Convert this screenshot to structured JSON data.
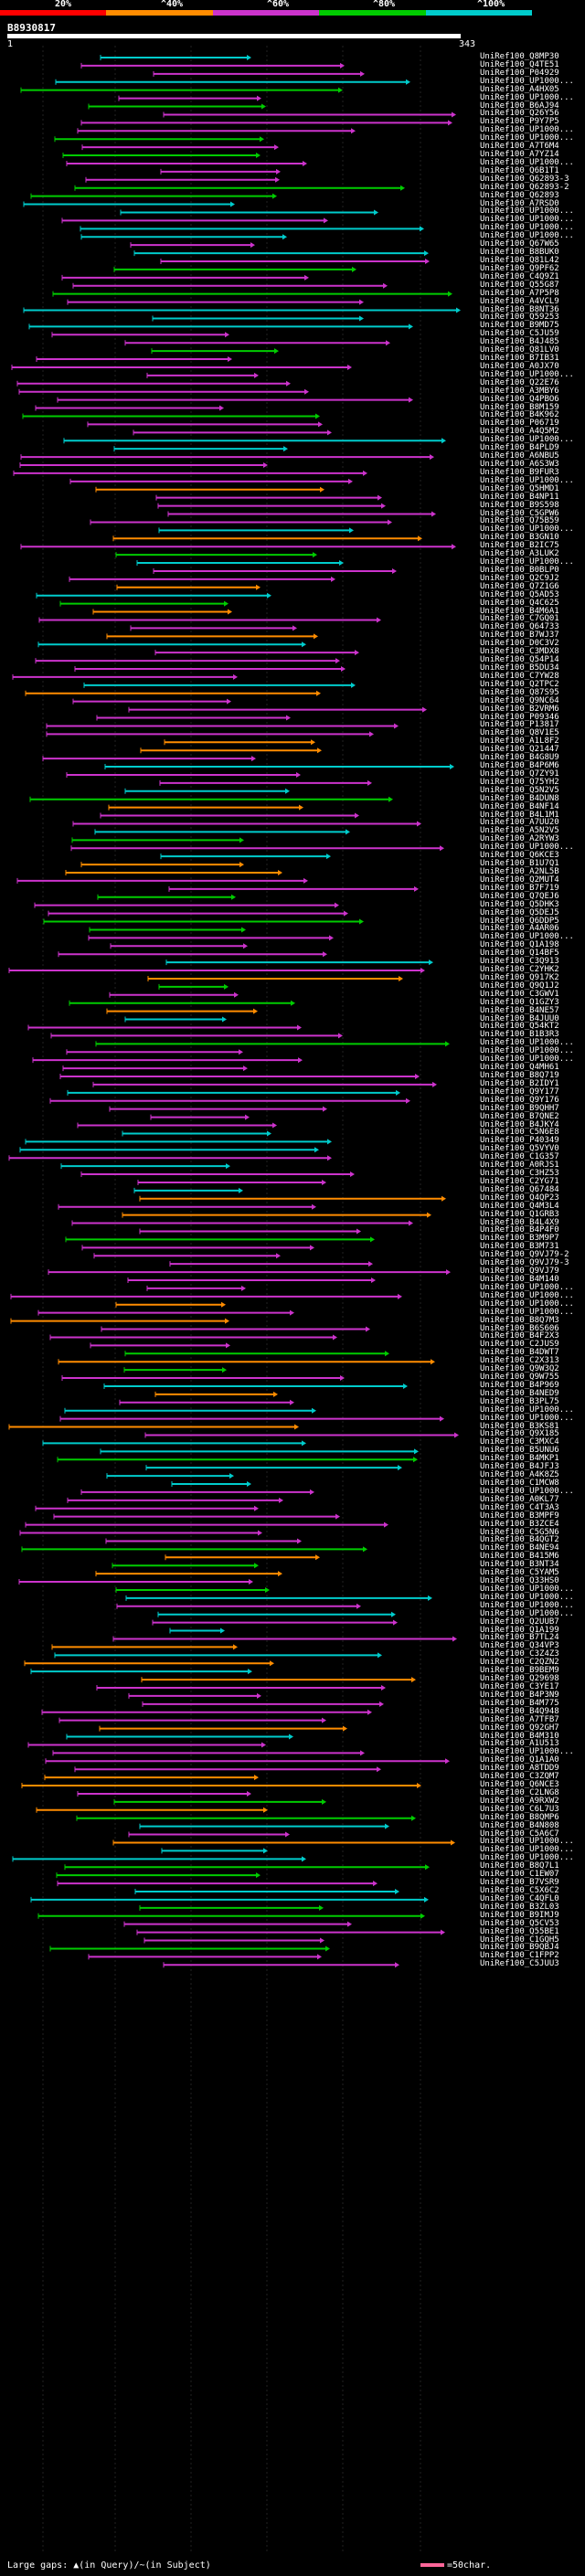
{
  "scale": {
    "labels": [
      "20%",
      "^40%",
      "^60%",
      "^80%",
      "^100%"
    ],
    "colors": [
      "#ff0000",
      "#ff8c00",
      "#cc33cc",
      "#00cc00",
      "#00cccc"
    ]
  },
  "query": {
    "id": "B8930817",
    "start": "1",
    "end": "343"
  },
  "hits": [
    "UniRef100_Q8MP30",
    "UniRef100_Q4TE51",
    "UniRef100_P04929",
    "UniRef100_UP1000...",
    "UniRef100_A4HX05",
    "UniRef100_UP1000...",
    "UniRef100_B6AJ94",
    "UniRef100_Q26Y56",
    "UniRef100_P9Y7P5",
    "UniRef100_UP1000...",
    "UniRef100_UP1000...",
    "UniRef100_A7T6M4",
    "UniRef100_A7YZ14",
    "UniRef100_UP1000...",
    "UniRef100_Q6B1T1",
    "UniRef100_Q62893-3",
    "UniRef100_Q62893-2",
    "UniRef100_Q62893",
    "UniRef100_A7RSD0",
    "UniRef100_UP1000...",
    "UniRef100_UP1000...",
    "UniRef100_UP1000...",
    "UniRef100_UP1000...",
    "UniRef100_Q67W65",
    "UniRef100_B8BUK0",
    "UniRef100_Q81L42",
    "UniRef100_Q9PF62",
    "UniRef100_C4Q9Z1",
    "UniRef100_Q55G87",
    "UniRef100_A7P5P8",
    "UniRef100_A4VCL9",
    "UniRef100_B8NT36",
    "UniRef100_Q59253",
    "UniRef100_B9MD75",
    "UniRef100_C5JU59",
    "UniRef100_B4J485",
    "UniRef100_Q81LV0",
    "UniRef100_B7IB31",
    "UniRef100_A0JX70",
    "UniRef100_UP1000...",
    "UniRef100_Q22E76",
    "UniRef100_A3MBY6",
    "UniRef100_Q4PBO6",
    "UniRef100_B8M159",
    "UniRef100_B4K962",
    "UniRef100_P06719",
    "UniRef100_A4Q5M2",
    "UniRef100_UP1000...",
    "UniRef100_B4PLD9",
    "UniRef100_A6NBU5",
    "UniRef100_A6S3W3",
    "UniRef100_B9FUR3",
    "UniRef100_UP1000...",
    "UniRef100_Q5HMD1",
    "UniRef100_B4NP11",
    "UniRef100_B9S598",
    "UniRef100_C5GPW6",
    "UniRef100_Q75B59",
    "UniRef100_UP1000...",
    "UniRef100_B3GN10",
    "UniRef100_B2IC75",
    "UniRef100_A3LUK2",
    "UniRef100_UP1000...",
    "UniRef100_B0BLP0",
    "UniRef100_Q2C9J2",
    "UniRef100_Q7Z1G6",
    "UniRef100_Q5AD53",
    "UniRef100_Q4C625",
    "UniRef100_B4M6A1",
    "UniRef100_C7GQ01",
    "UniRef100_Q64733",
    "UniRef100_B7WJ37",
    "UniRef100_D0C3V2",
    "UniRef100_C3MDX8",
    "UniRef100_Q54P14",
    "UniRef100_B5DU34",
    "UniRef100_C7YW28",
    "UniRef100_Q2TPC2",
    "UniRef100_Q87S95",
    "UniRef100_Q9NC64",
    "UniRef100_B2VRM6",
    "UniRef100_P09346",
    "UniRef100_P13817",
    "UniRef100_Q8V1E5",
    "UniRef100_A1L8F2",
    "UniRef100_Q21447",
    "UniRef100_B4G8U9",
    "UniRef100_B4P6M6",
    "UniRef100_Q7ZY91",
    "UniRef100_Q75YH2",
    "UniRef100_Q5N2V5",
    "UniRef100_B4DUN8",
    "UniRef100_B4NF14",
    "UniRef100_B4L1M1",
    "UniRef100_A7UU20",
    "UniRef100_A5N2V5",
    "UniRef100_A2RYW3",
    "UniRef100_UP1000...",
    "UniRef100_Q6KCE3",
    "UniRef100_B1U7Q1",
    "UniRef100_A2NL5B",
    "UniRef100_Q2MUT4",
    "UniRef100_B7F719",
    "UniRef100_Q7QEJ6",
    "UniRef100_Q5DHK3",
    "UniRef100_Q5DEJ5",
    "UniRef100_Q6DDP5",
    "UniRef100_A4AR06",
    "UniRef100_UP1000...",
    "UniRef100_Q1A198",
    "UniRef100_Q14BF5",
    "UniRef100_C3Q913",
    "UniRef100_C2YHK2",
    "UniRef100_Q917K2",
    "UniRef100_Q9Q1J2",
    "UniRef100_C3GWV1",
    "UniRef100_Q1GZY3",
    "UniRef100_B4NE57",
    "UniRef100_B4JUU0",
    "UniRef100_Q54KT2",
    "UniRef100_B1B3R3",
    "UniRef100_UP1000...",
    "UniRef100_UP1000...",
    "UniRef100_UP1000...",
    "UniRef100_Q4MH61",
    "UniRef100_B8Q719",
    "UniRef100_B2IDY1",
    "UniRef100_Q9Y177",
    "UniRef100_Q9Y176",
    "UniRef100_B9QHH7",
    "UniRef100_B7QNE2",
    "UniRef100_B4JKY4",
    "UniRef100_C5N6E8",
    "UniRef100_P40349",
    "UniRef100_Q5VYV0",
    "UniRef100_C1G357",
    "UniRef100_A0RJS1",
    "UniRef100_C3HZ53",
    "UniRef100_C2YG71",
    "UniRef100_Q67484",
    "UniRef100_Q4QP23",
    "UniRef100_Q4M3L4",
    "UniRef100_Q1GRB3",
    "UniRef100_B4L4X9",
    "UniRef100_B4P4F0",
    "UniRef100_B3M9P7",
    "UniRef100_B3M731",
    "UniRef100_Q9VJ79-2",
    "UniRef100_Q9VJ79-3",
    "UniRef100_Q9VJ79",
    "UniRef100_B4M140",
    "UniRef100_UP1000...",
    "UniRef100_UP1000...",
    "UniRef100_UP1000...",
    "UniRef100_UP1000...",
    "UniRef100_B8Q7M3",
    "UniRef100_B6S606",
    "UniRef100_B4F2X3",
    "UniRef100_C2JUS9",
    "UniRef100_B4DWT7",
    "UniRef100_C2X313",
    "UniRef100_Q9W3Q2",
    "UniRef100_Q9W755",
    "UniRef100_B4P969",
    "UniRef100_B4NED9",
    "UniRef100_B3PL75",
    "UniRef100_UP1000...",
    "UniRef100_UP1000...",
    "UniRef100_B3KS81",
    "UniRef100_Q9X185",
    "UniRef100_C3MXC4",
    "UniRef100_B5UNU6",
    "UniRef100_B4MKP1",
    "UniRef100_B4JFJ3",
    "UniRef100_A4K8Z5",
    "UniRef100_C1MCW8",
    "UniRef100_UP1000...",
    "UniRef100_A0KL77",
    "UniRef100_C4T3A3",
    "UniRef100_B3MPF9",
    "UniRef100_B3ZCE4",
    "UniRef100_C5G5N6",
    "UniRef100_B4QGT2",
    "UniRef100_B4NE94",
    "UniRef100_B415M6",
    "UniRef100_B3NT34",
    "UniRef100_C5YAM5",
    "UniRef100_Q33HS0",
    "UniRef100_UP1000...",
    "UniRef100_UP1000...",
    "UniRef100_UP1000...",
    "UniRef100_UP1000...",
    "UniRef100_Q2UUB7",
    "UniRef100_Q1A199",
    "UniRef100_B7TL24",
    "UniRef100_Q34VP3",
    "UniRef100_C3Z4Z3",
    "UniRef100_C2QZN2",
    "UniRef100_B9BEM9",
    "UniRef100_Q29698",
    "UniRef100_C3YE17",
    "UniRef100_B4P3N9",
    "UniRef100_B4M775",
    "UniRef100_B4Q948",
    "UniRef100_A7TFB7",
    "UniRef100_Q92GH7",
    "UniRef100_B4M310",
    "UniRef100_A1U513",
    "UniRef100_UP1000...",
    "UniRef100_Q1A1A0",
    "UniRef100_A8TDD9",
    "UniRef100_C3ZQM7",
    "UniRef100_Q6NCE3",
    "UniRef100_C2LNG8",
    "UniRef100_A9RXW2",
    "UniRef100_C6L7U3",
    "UniRef100_B8QMP6",
    "UniRef100_B4N808",
    "UniRef100_C5A6C7",
    "UniRef100_UP1000...",
    "UniRef100_UP1000...",
    "UniRef100_UP1000...",
    "UniRef100_B8Q7L1",
    "UniRef100_C1EW07",
    "UniRef100_B7VSR9",
    "UniRef100_C5X6C2",
    "UniRef100_C4QFL0",
    "UniRef100_B3ZL03",
    "UniRef100_B9IMJ9",
    "UniRef100_Q5CV53",
    "UniRef100_Q55BE1",
    "UniRef100_C1GQH5",
    "UniRef100_B9QBJ4",
    "UniRef100_C1FPP2",
    "UniRef100_C5JUU3"
  ],
  "legend": {
    "gaps_label": "Large gaps: ▲(in Query)/~(in Subject)",
    "scale_label": "=50char."
  }
}
